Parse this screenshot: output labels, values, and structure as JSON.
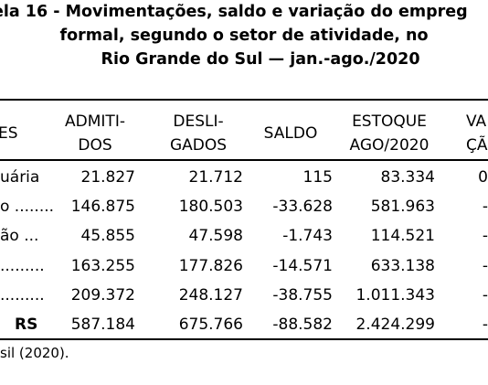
{
  "title": {
    "line1": "ela 16 - Movimentações, saldo e variação do empreg",
    "line2": "formal, segundo o setor de atividade, no",
    "line3": "Rio Grande do Sul — jan.-ago./2020"
  },
  "columns": {
    "sector": "ES",
    "admitidos": [
      "ADMITI-",
      "DOS"
    ],
    "desligados": [
      "DESLI-",
      "GADOS"
    ],
    "saldo": [
      "SALDO"
    ],
    "estoque": [
      "ESTOQUE",
      "AGO/2020"
    ],
    "variacao": [
      "VA",
      "ÇÃ"
    ]
  },
  "rows": [
    {
      "sector": "uária",
      "admitidos": "21.827",
      "desligados": "21.712",
      "saldo": "115",
      "estoque": "83.334",
      "variacao": "0"
    },
    {
      "sector": "o ........",
      "admitidos": "146.875",
      "desligados": "180.503",
      "saldo": "-33.628",
      "estoque": "581.963",
      "variacao": "-"
    },
    {
      "sector": "ão ...",
      "admitidos": "45.855",
      "desligados": "47.598",
      "saldo": "-1.743",
      "estoque": "114.521",
      "variacao": "-"
    },
    {
      "sector": ".........",
      "admitidos": "163.255",
      "desligados": "177.826",
      "saldo": "-14.571",
      "estoque": "633.138",
      "variacao": "-"
    },
    {
      "sector": ".........",
      "admitidos": "209.372",
      "desligados": "248.127",
      "saldo": "-38.755",
      "estoque": "1.011.343",
      "variacao": "-"
    },
    {
      "sector": "RS",
      "admitidos": "587.184",
      "desligados": "675.766",
      "saldo": "-88.582",
      "estoque": "2.424.299",
      "variacao": "-"
    }
  ],
  "source": "sil (2020)."
}
